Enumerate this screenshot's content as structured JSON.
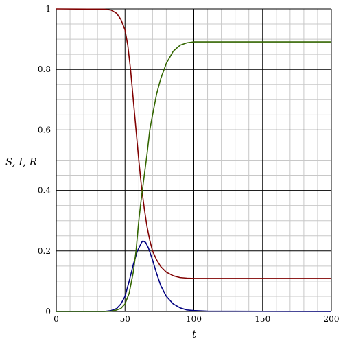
{
  "chart_data": {
    "type": "line",
    "title": "",
    "xlabel": "t",
    "ylabel": "S, I, R",
    "xlim": [
      0,
      200
    ],
    "ylim": [
      0,
      1
    ],
    "x_ticks": [
      "0",
      "50",
      "100",
      "150",
      "200"
    ],
    "y_ticks": [
      "0",
      "0.2",
      "0.4",
      "0.6",
      "0.8",
      "1"
    ],
    "grid": true,
    "legend": "none",
    "series": [
      {
        "color": "#800000",
        "points": [
          [
            0,
            1
          ],
          [
            35,
            0.999
          ],
          [
            40,
            0.996
          ],
          [
            44,
            0.985
          ],
          [
            47,
            0.965
          ],
          [
            50,
            0.93
          ],
          [
            52,
            0.88
          ],
          [
            54,
            0.8
          ],
          [
            56,
            0.7
          ],
          [
            58,
            0.6
          ],
          [
            60,
            0.5
          ],
          [
            62,
            0.41
          ],
          [
            64,
            0.34
          ],
          [
            66,
            0.28
          ],
          [
            68,
            0.235
          ],
          [
            70,
            0.2
          ],
          [
            73,
            0.17
          ],
          [
            76,
            0.148
          ],
          [
            80,
            0.13
          ],
          [
            85,
            0.118
          ],
          [
            90,
            0.112
          ],
          [
            95,
            0.11
          ],
          [
            100,
            0.109
          ],
          [
            150,
            0.109
          ],
          [
            200,
            0.109
          ]
        ]
      },
      {
        "color": "#000080",
        "points": [
          [
            0,
            0
          ],
          [
            35,
            0
          ],
          [
            40,
            0.003
          ],
          [
            44,
            0.01
          ],
          [
            47,
            0.025
          ],
          [
            50,
            0.05
          ],
          [
            53,
            0.1
          ],
          [
            56,
            0.155
          ],
          [
            59,
            0.2
          ],
          [
            62,
            0.228
          ],
          [
            63,
            0.233
          ],
          [
            65,
            0.228
          ],
          [
            67,
            0.21
          ],
          [
            70,
            0.17
          ],
          [
            73,
            0.125
          ],
          [
            76,
            0.085
          ],
          [
            80,
            0.05
          ],
          [
            85,
            0.025
          ],
          [
            90,
            0.012
          ],
          [
            95,
            0.005
          ],
          [
            100,
            0.003
          ],
          [
            110,
            0.001
          ],
          [
            200,
            0
          ]
        ]
      },
      {
        "color": "#336600",
        "points": [
          [
            0,
            0
          ],
          [
            35,
            0
          ],
          [
            40,
            0.001
          ],
          [
            44,
            0.005
          ],
          [
            47,
            0.01
          ],
          [
            50,
            0.025
          ],
          [
            53,
            0.06
          ],
          [
            56,
            0.13
          ],
          [
            58,
            0.2
          ],
          [
            60,
            0.3
          ],
          [
            62,
            0.38
          ],
          [
            64,
            0.45
          ],
          [
            66,
            0.52
          ],
          [
            68,
            0.6
          ],
          [
            70,
            0.65
          ],
          [
            73,
            0.72
          ],
          [
            76,
            0.77
          ],
          [
            80,
            0.82
          ],
          [
            85,
            0.86
          ],
          [
            90,
            0.88
          ],
          [
            95,
            0.888
          ],
          [
            100,
            0.891
          ],
          [
            110,
            0.891
          ],
          [
            150,
            0.891
          ],
          [
            200,
            0.891
          ]
        ]
      }
    ]
  }
}
